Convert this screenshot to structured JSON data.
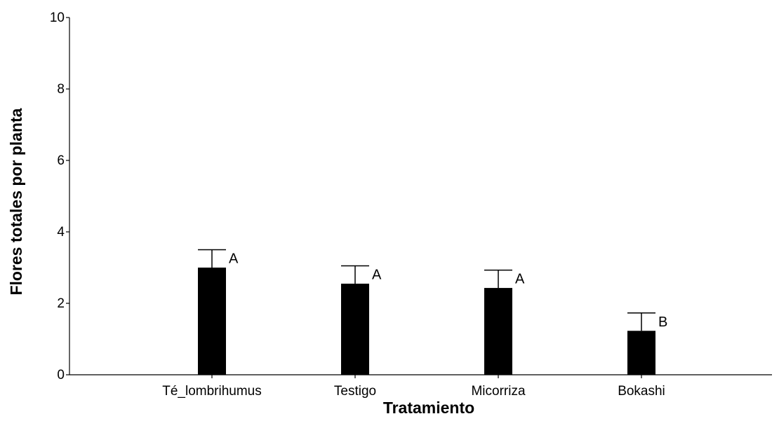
{
  "chart_data": {
    "type": "bar",
    "title": "",
    "xlabel": "Tratamiento",
    "ylabel": "Flores totales por planta",
    "ylim": [
      0,
      10
    ],
    "yticks": [
      0,
      2,
      4,
      6,
      8,
      10
    ],
    "grid": false,
    "legend": "none",
    "bar_color": "#000000",
    "categories": [
      "Té_lombrihumus",
      "Testigo",
      "Micorriza",
      "Bokashi"
    ],
    "values": [
      3.0,
      2.55,
      2.43,
      1.23
    ],
    "errors": [
      0.5,
      0.5,
      0.5,
      0.5
    ],
    "significance_letters": [
      "A",
      "A",
      "A",
      "B"
    ]
  }
}
